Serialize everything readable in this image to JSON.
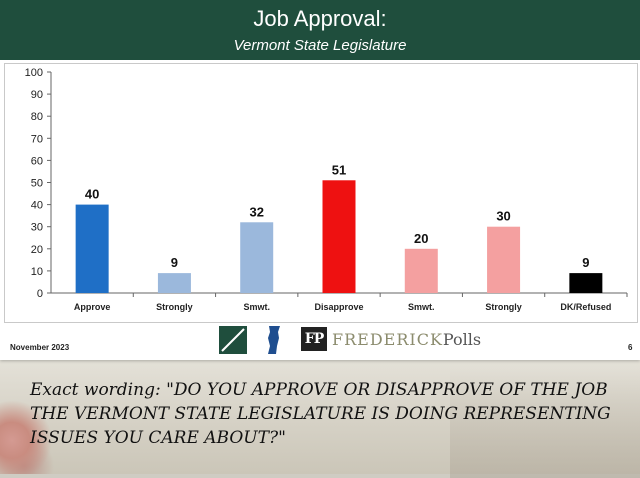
{
  "header": {
    "title": "Job Approval:",
    "subtitle": "Vermont State Legislature"
  },
  "footer": {
    "date": "November 2023",
    "page": "6",
    "logo_text_main": "FREDERICK",
    "logo_text_suffix": "Polls",
    "logo_fp": "FP"
  },
  "caption": "Exact wording: \"DO YOU APPROVE OR DISAPPROVE OF THE JOB THE VERMONT STATE LEGISLATURE IS DOING REPRESENTING ISSUES YOU CARE ABOUT?\"",
  "colors": {
    "header_bg": "#1f4e3d",
    "approve": "#1f6fc6",
    "approve_light": "#9bb8dc",
    "disapprove": "#ee1111",
    "disapprove_light": "#f4a0a0",
    "dk": "#000000"
  },
  "chart_data": {
    "type": "bar",
    "categories": [
      "Approve",
      "Strongly",
      "Smwt.",
      "Disapprove",
      "Smwt.",
      "Strongly",
      "DK/Refused"
    ],
    "values": [
      40,
      9,
      32,
      51,
      20,
      30,
      9
    ],
    "bar_colors": [
      "#1f6fc6",
      "#9bb8dc",
      "#9bb8dc",
      "#ee1111",
      "#f4a0a0",
      "#f4a0a0",
      "#000000"
    ],
    "ylim": [
      0,
      100
    ],
    "yticks": [
      0,
      10,
      20,
      30,
      40,
      50,
      60,
      70,
      80,
      90,
      100
    ],
    "title": "",
    "xlabel": "",
    "ylabel": "",
    "grid": false,
    "legend": "none"
  }
}
